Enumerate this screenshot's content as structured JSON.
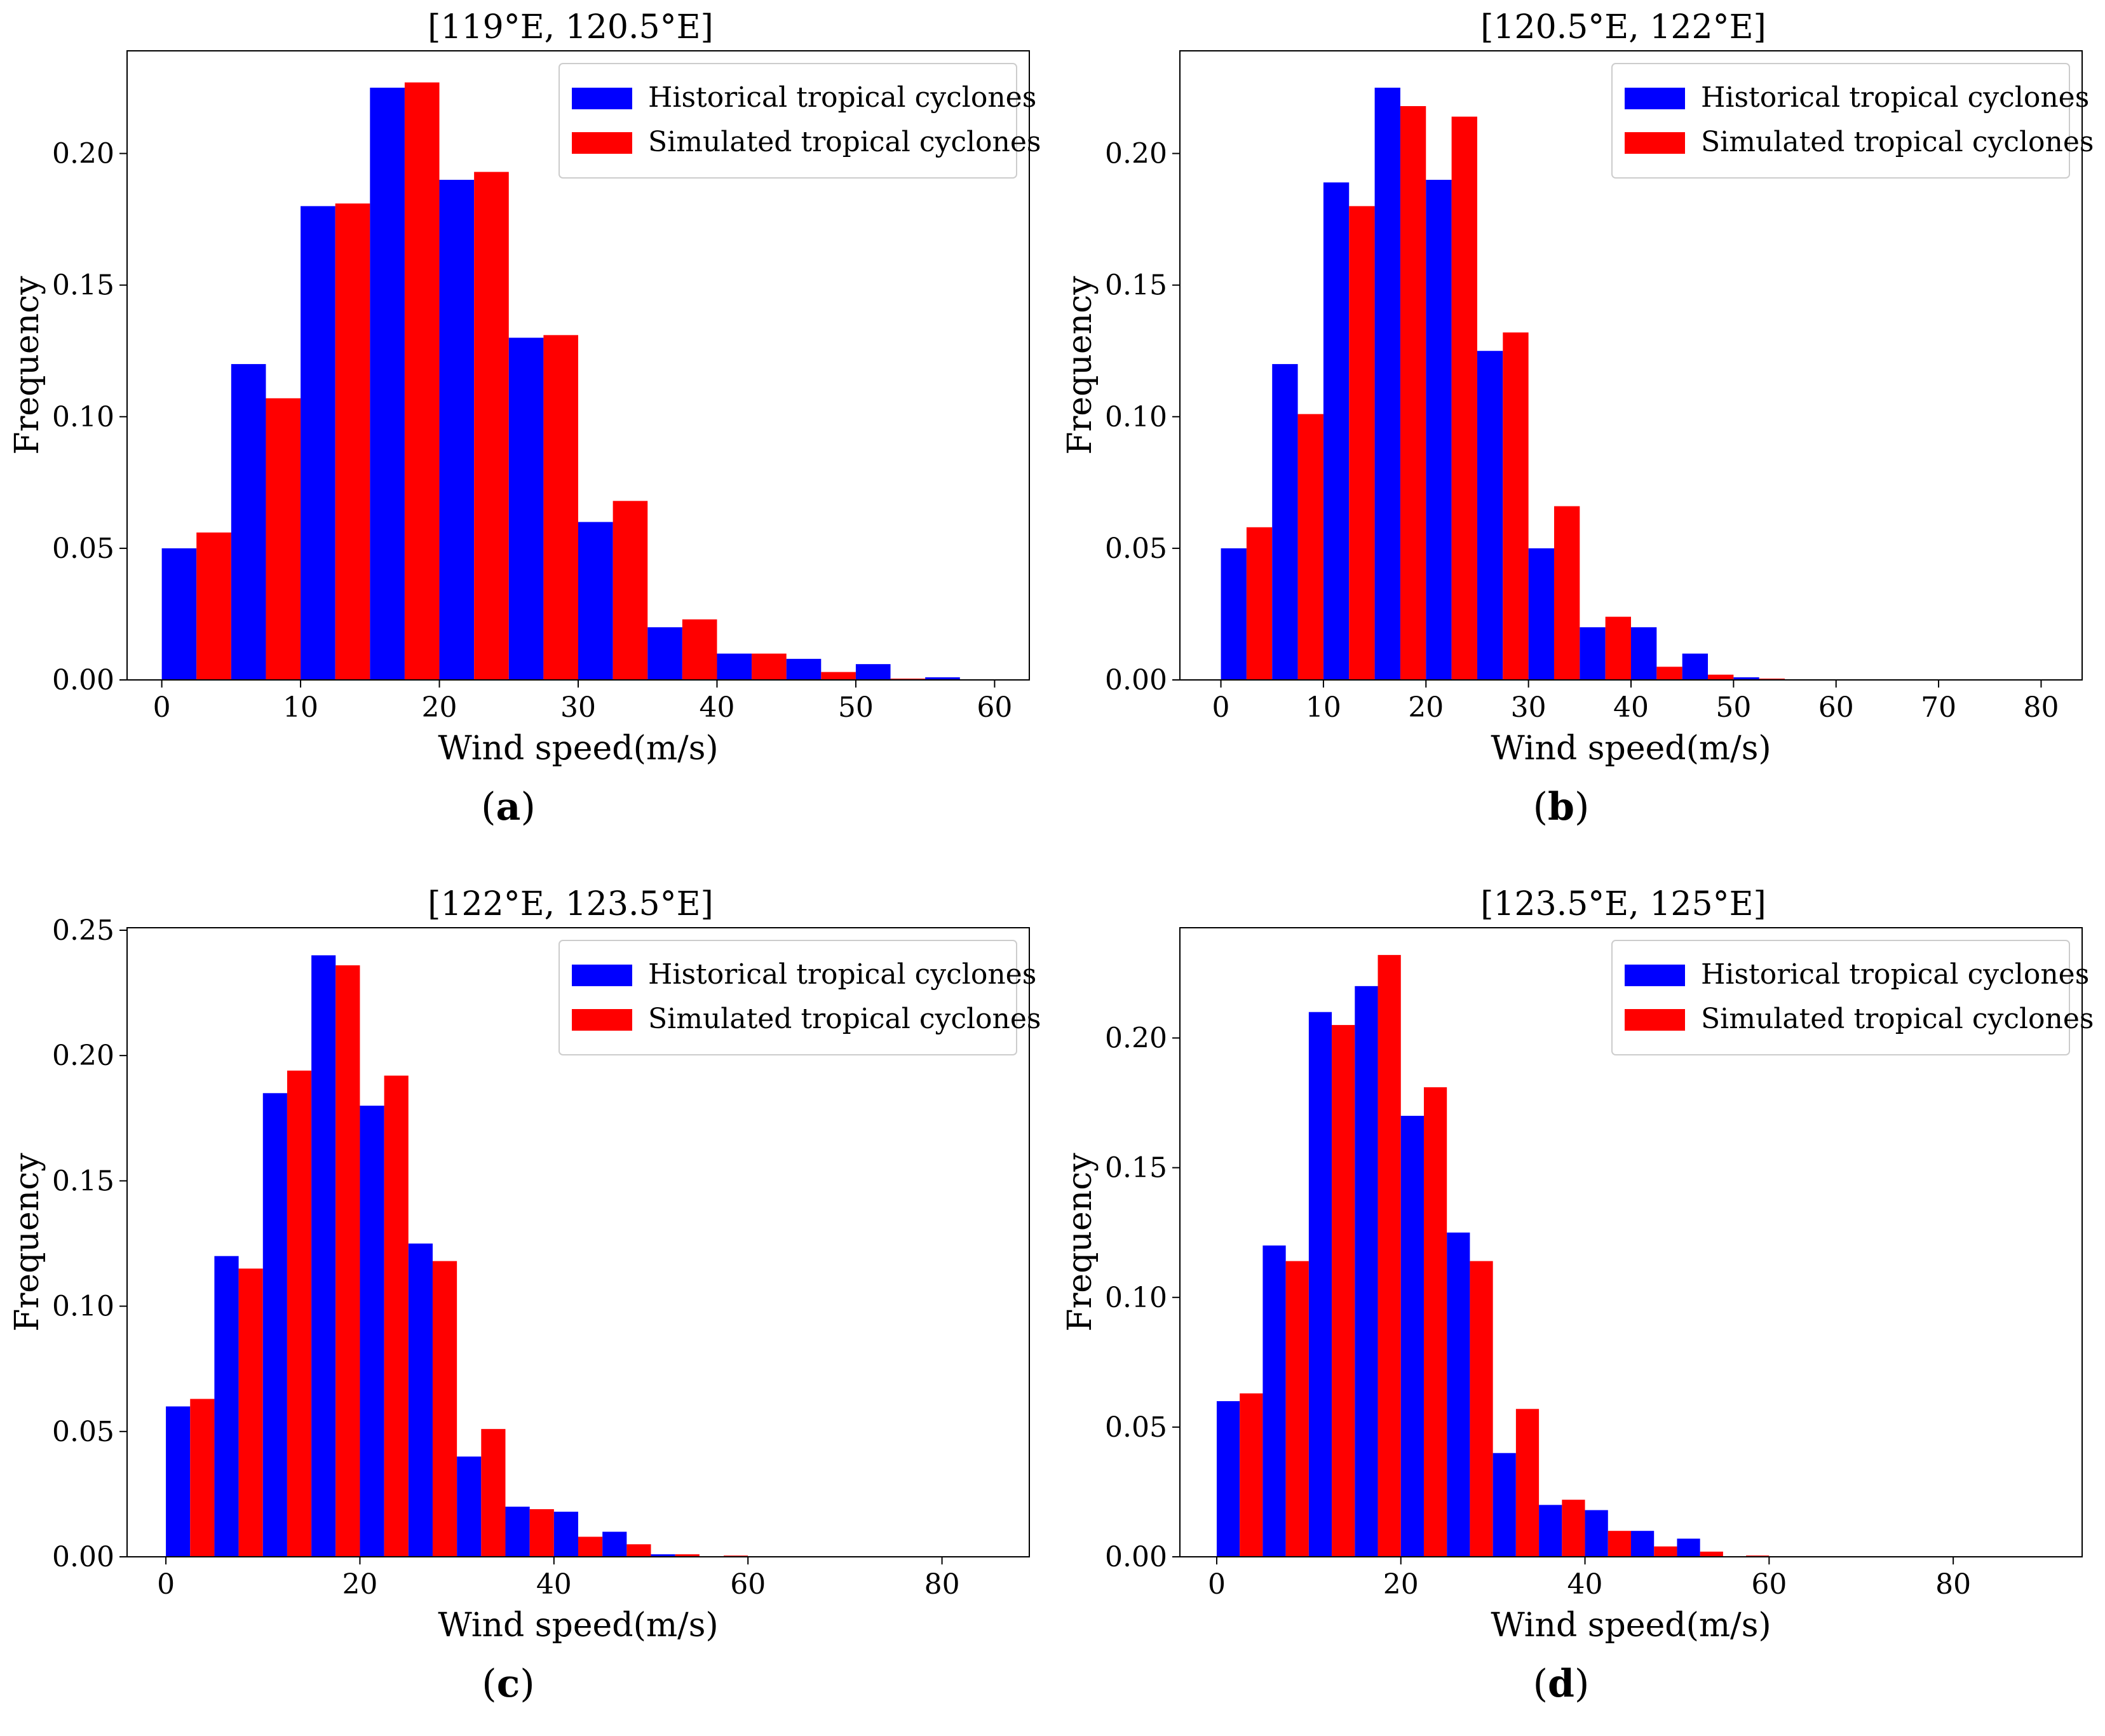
{
  "figure": {
    "panels": [
      "a",
      "b",
      "c",
      "d"
    ]
  },
  "chart_data": [
    {
      "id": "a",
      "type": "bar",
      "title": "[119°E, 120.5°E]",
      "xlabel": "Wind speed(m/s)",
      "ylabel": "Frequency",
      "sublabel_open": "(",
      "sublabel": "a",
      "sublabel_close": ")",
      "xlim": [
        -2.5,
        62.5
      ],
      "ylim": [
        0,
        0.239
      ],
      "xticks": [
        0,
        10,
        20,
        30,
        40,
        50,
        60
      ],
      "xtick_labels": [
        "0",
        "10",
        "20",
        "30",
        "40",
        "50",
        "60"
      ],
      "yticks": [
        0,
        0.05,
        0.1,
        0.15,
        0.2
      ],
      "ytick_labels": [
        "0.00",
        "0.05",
        "0.10",
        "0.15",
        "0.20"
      ],
      "bin_width": 5,
      "bins": [
        0,
        5,
        10,
        15,
        20,
        25,
        30,
        35,
        40,
        45,
        50,
        55
      ],
      "legend_position": "upper-right",
      "series": [
        {
          "name": "Historical tropical cyclones",
          "color": "#0000ff",
          "values": [
            0.05,
            0.12,
            0.18,
            0.225,
            0.19,
            0.13,
            0.06,
            0.02,
            0.01,
            0.008,
            0.006,
            0.001
          ]
        },
        {
          "name": "Simulated tropical cyclones",
          "color": "#ff0000",
          "values": [
            0.056,
            0.107,
            0.181,
            0.227,
            0.193,
            0.131,
            0.068,
            0.023,
            0.01,
            0.003,
            0.0005,
            0.0
          ]
        }
      ]
    },
    {
      "id": "b",
      "type": "bar",
      "title": "[120.5°E, 122°E]",
      "xlabel": "Wind speed(m/s)",
      "ylabel": "Frequency",
      "sublabel_open": "(",
      "sublabel": "b",
      "sublabel_close": ")",
      "xlim": [
        -4,
        84
      ],
      "ylim": [
        0,
        0.239
      ],
      "xticks": [
        0,
        10,
        20,
        30,
        40,
        50,
        60,
        70,
        80
      ],
      "xtick_labels": [
        "0",
        "10",
        "20",
        "30",
        "40",
        "50",
        "60",
        "70",
        "80"
      ],
      "yticks": [
        0,
        0.05,
        0.1,
        0.15,
        0.2
      ],
      "ytick_labels": [
        "0.00",
        "0.05",
        "0.10",
        "0.15",
        "0.20"
      ],
      "bin_width": 5,
      "bins": [
        0,
        5,
        10,
        15,
        20,
        25,
        30,
        35,
        40,
        45,
        50
      ],
      "legend_position": "upper-right",
      "series": [
        {
          "name": "Historical tropical cyclones",
          "color": "#0000ff",
          "values": [
            0.05,
            0.12,
            0.189,
            0.225,
            0.19,
            0.125,
            0.05,
            0.02,
            0.02,
            0.01,
            0.001
          ]
        },
        {
          "name": "Simulated tropical cyclones",
          "color": "#ff0000",
          "values": [
            0.058,
            0.101,
            0.18,
            0.218,
            0.214,
            0.132,
            0.066,
            0.024,
            0.005,
            0.002,
            0.0005
          ]
        }
      ]
    },
    {
      "id": "c",
      "type": "bar",
      "title": "[122°E, 123.5°E]",
      "xlabel": "Wind speed(m/s)",
      "ylabel": "Frequency",
      "sublabel_open": "(",
      "sublabel": "c",
      "sublabel_close": ")",
      "xlim": [
        -4,
        89
      ],
      "ylim": [
        0,
        0.251
      ],
      "xticks": [
        0,
        20,
        40,
        60,
        80
      ],
      "xtick_labels": [
        "0",
        "20",
        "40",
        "60",
        "80"
      ],
      "yticks": [
        0,
        0.05,
        0.1,
        0.15,
        0.2,
        0.25
      ],
      "ytick_labels": [
        "0.00",
        "0.05",
        "0.10",
        "0.15",
        "0.20",
        "0.25"
      ],
      "bin_width": 5,
      "bins": [
        0,
        5,
        10,
        15,
        20,
        25,
        30,
        35,
        40,
        45,
        50,
        55
      ],
      "legend_position": "upper-right",
      "series": [
        {
          "name": "Historical tropical cyclones",
          "color": "#0000ff",
          "values": [
            0.06,
            0.12,
            0.185,
            0.24,
            0.18,
            0.125,
            0.04,
            0.02,
            0.018,
            0.01,
            0.001,
            0.0
          ]
        },
        {
          "name": "Simulated tropical cyclones",
          "color": "#ff0000",
          "values": [
            0.063,
            0.115,
            0.194,
            0.236,
            0.192,
            0.118,
            0.051,
            0.019,
            0.008,
            0.005,
            0.001,
            0.0005
          ]
        }
      ]
    },
    {
      "id": "d",
      "type": "bar",
      "title": "[123.5°E, 125°E]",
      "xlabel": "Wind speed(m/s)",
      "ylabel": "Frequency",
      "sublabel_open": "(",
      "sublabel": "d",
      "sublabel_close": ")",
      "xlim": [
        -4,
        94
      ],
      "ylim": [
        0,
        0.2425
      ],
      "xticks": [
        0,
        20,
        40,
        60,
        80
      ],
      "xtick_labels": [
        "0",
        "20",
        "40",
        "60",
        "80"
      ],
      "yticks": [
        0,
        0.05,
        0.1,
        0.15,
        0.2
      ],
      "ytick_labels": [
        "0.00",
        "0.05",
        "0.10",
        "0.15",
        "0.20"
      ],
      "bin_width": 5,
      "bins": [
        0,
        5,
        10,
        15,
        20,
        25,
        30,
        35,
        40,
        45,
        50,
        55
      ],
      "legend_position": "upper-right",
      "series": [
        {
          "name": "Historical tropical cyclones",
          "color": "#0000ff",
          "values": [
            0.06,
            0.12,
            0.21,
            0.22,
            0.17,
            0.125,
            0.04,
            0.02,
            0.018,
            0.01,
            0.007,
            0.0
          ]
        },
        {
          "name": "Simulated tropical cyclones",
          "color": "#ff0000",
          "values": [
            0.063,
            0.114,
            0.205,
            0.232,
            0.181,
            0.114,
            0.057,
            0.022,
            0.01,
            0.004,
            0.002,
            0.0005
          ]
        }
      ]
    }
  ]
}
